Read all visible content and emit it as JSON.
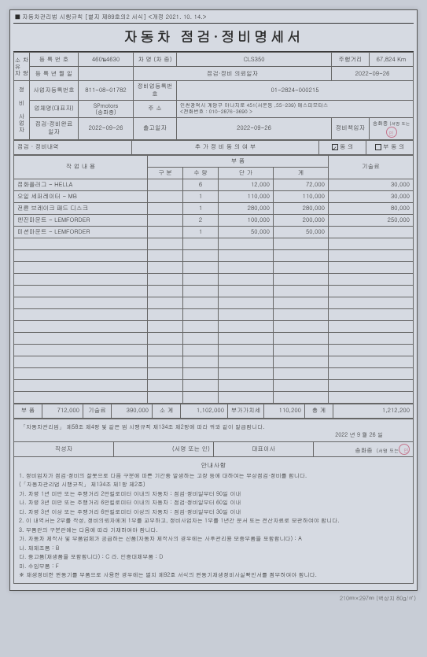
{
  "header_ref": "■ 자동차관리법 시행규칙 [별지 제89호의2 서식] <개정 2021. 10. 14.>",
  "title": "자동차 점검·정비명세서",
  "info": {
    "owner_section": "차 량\n소유자",
    "reg_no_lbl": "등 록 번 호",
    "reg_no": "460น4630",
    "car_name_lbl": "차 명 (차 종)",
    "car_name": "CLS350",
    "mileage_lbl": "주행거리",
    "mileage": "67,824 Km",
    "reg_date_lbl": "등 록 년 월 일",
    "req_date_lbl": "점검·정비 의뢰일자",
    "req_date": "2022-09-26",
    "shop_section": "정 비\n사업자",
    "biz_no_lbl": "사업자등록번호",
    "biz_no": "811-08-01782",
    "shop_reg_lbl": "정비업등록번호",
    "shop_reg": "01-2824-000215",
    "company_lbl": "업체명(대표자)",
    "company": "SPmotors\n(송화종)",
    "addr_lbl": "주 소",
    "addr": "인천광역시 계양구 아나지로 451(서운동 ,55-239) 에스피모터스\n<전화번호 : 010-2876-3690 >",
    "done_lbl": "점검·정비완료일자",
    "done": "2022-09-26",
    "out_lbl": "출고일자",
    "out": "2022-09-26",
    "resp_lbl": "정비책임자",
    "resp": "송화종",
    "sig_hint": "(서명 또는",
    "scope_lbl": "점검 · 정비내역",
    "consent_lbl": "추 가 정 비 동 의 여 부",
    "consent_y": "동 의",
    "consent_n": "부 동 의",
    "work_lbl": "작 업 내 용",
    "parts_lbl": "부  품",
    "qty_div": "구  분",
    "qty": "수  량",
    "price": "단  가",
    "sum": "계",
    "tech_lbl": "기술료"
  },
  "items": [
    {
      "name": "점화플러그 - HELLA",
      "div": "",
      "qty": "6",
      "price": "12,000",
      "sum": "72,000",
      "tech": "30,000"
    },
    {
      "name": "오일 세퍼레이터 - MB",
      "div": "",
      "qty": "1",
      "price": "110,000",
      "sum": "110,000",
      "tech": "30,000"
    },
    {
      "name": "전륜 브레이크 패드 디스크",
      "div": "",
      "qty": "1",
      "price": "280,000",
      "sum": "280,000",
      "tech": "80,000"
    },
    {
      "name": "엔진마운트 - LEMFORDER",
      "div": "",
      "qty": "2",
      "price": "100,000",
      "sum": "200,000",
      "tech": "250,000"
    },
    {
      "name": "미션마운트 - LEMFORDER",
      "div": "",
      "qty": "1",
      "price": "50,000",
      "sum": "50,000",
      "tech": ""
    }
  ],
  "blank_rows": 14,
  "totals": {
    "parts_lbl": "부  품",
    "parts": "712,000",
    "tech_lbl": "기술료",
    "tech": "390,000",
    "sub_lbl": "소  계",
    "sub": "1,102,000",
    "vat_lbl": "부가가치세",
    "vat": "110,200",
    "total_lbl": "총  계",
    "total": "1,212,200"
  },
  "cert": {
    "law": "「자동차관리법」 제58조 제4항 및 같은 법 시행규칙 제134조 제2항에 따라 위와 같이 발급합니다.",
    "date": "2022 년  9 월  26 일",
    "maker_lbl": "작성자",
    "maker_sig": "(서명 또는 인)",
    "rep_lbl": "대표이사",
    "rep_name": "송화종",
    "rep_sig": "(서명 또는"
  },
  "notes": {
    "title": "안내사항",
    "lines": [
      "1. 정비업자가 점검·정비의 잘못으로 다음 구분에 따른 기간중 발생하는 고장 등에 대하여는 무상점검·정비를 합니다.",
      "   (「자동차관리법 시행규칙」 제134조 제1항 제2호)",
      "   가. 차령 1년 미만 또는 주행거리 2만킬로미터 이내의 자동차 : 점검·정비일부터 90일 이내",
      "   나. 차령 3년 미만 또는 주행거리 6만킬로미터 이내의 자동차 : 점검·정비일부터 60일 이내",
      "   다. 차령 3년 이상 또는 주행거리 6만킬로미터 이상의 자동차 : 점검·정비일부터 30일 이내",
      "2. 이 내역서는 2부를 작성, 정비의뢰자에게 1부를 교부하고, 정비사업자는 1부를 1년간 문서 또는 전산자료로 보관하여야 합니다.",
      "3. 부품란의 구분란에는 다음에 따라 기재하여야 합니다.",
      "   가. 자동차 제작사 및 부품업체가 공급하는 신품(자동차 제작사의 경우에는 사후관리용 보증부품을 포함합니다) : A",
      "   나. 재제조품 : B",
      "   다. 중고품(재생품을 포함합니다) : C     라. 인증대체부품 : D",
      "   마. 수입부품 : F",
      " ※ 재생정비한 원동기를 부품으로 사용한 경우에는 별지 제92호 서식의 원동기재생정비사실확인서를 첨부하여야 합니다."
    ]
  },
  "foot": "210㎜×297㎜ (백상지 80g/㎡)"
}
